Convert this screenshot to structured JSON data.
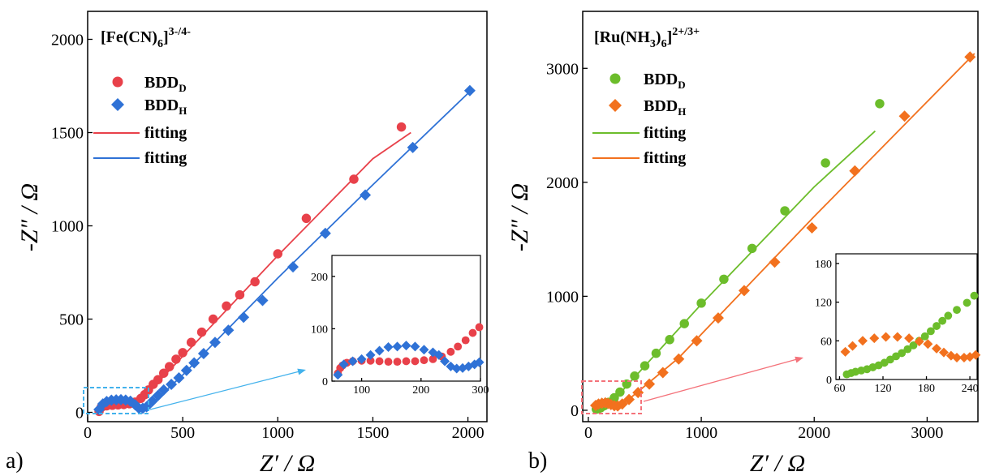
{
  "chart_data": [
    {
      "panel_label": "a)",
      "type": "scatter",
      "title": "[Fe(CN)6]3-/4-",
      "xlabel": "Z′ / Ω",
      "ylabel": "-Z″ / Ω",
      "xlim": [
        0,
        2100
      ],
      "ylim": [
        -50,
        2150
      ],
      "xticks": [
        0,
        500,
        1000,
        1500,
        2000
      ],
      "yticks": [
        0,
        500,
        1000,
        1500,
        2000
      ],
      "grid": false,
      "legend_position": "top-left",
      "legend": [
        "BDDD",
        "BDDH",
        "fitting",
        "fitting"
      ],
      "series": [
        {
          "name": "BDDD",
          "marker": "circle",
          "color": "#e8414a",
          "points": [
            [
              60,
              5
            ],
            [
              70,
              25
            ],
            [
              80,
              32
            ],
            [
              100,
              35
            ],
            [
              130,
              38
            ],
            [
              160,
              40
            ],
            [
              190,
              42
            ],
            [
              220,
              46
            ],
            [
              250,
              55
            ],
            [
              280,
              75
            ],
            [
              300,
              95
            ],
            [
              320,
              120
            ],
            [
              345,
              150
            ],
            [
              370,
              175
            ],
            [
              400,
              210
            ],
            [
              430,
              245
            ],
            [
              465,
              285
            ],
            [
              500,
              320
            ],
            [
              545,
              375
            ],
            [
              600,
              430
            ],
            [
              660,
              500
            ],
            [
              730,
              570
            ],
            [
              800,
              630
            ],
            [
              880,
              700
            ],
            [
              1000,
              850
            ],
            [
              1150,
              1040
            ],
            [
              1400,
              1250
            ],
            [
              1650,
              1530
            ]
          ]
        },
        {
          "name": "BDDH",
          "marker": "diamond",
          "color": "#2f72d6",
          "points": [
            [
              60,
              15
            ],
            [
              80,
              45
            ],
            [
              100,
              58
            ],
            [
              125,
              65
            ],
            [
              150,
              67
            ],
            [
              175,
              68
            ],
            [
              200,
              66
            ],
            [
              225,
              60
            ],
            [
              250,
              40
            ],
            [
              270,
              22
            ],
            [
              290,
              22
            ],
            [
              310,
              30
            ],
            [
              340,
              60
            ],
            [
              370,
              90
            ],
            [
              400,
              120
            ],
            [
              440,
              150
            ],
            [
              480,
              185
            ],
            [
              520,
              225
            ],
            [
              560,
              265
            ],
            [
              610,
              315
            ],
            [
              670,
              375
            ],
            [
              740,
              440
            ],
            [
              820,
              510
            ],
            [
              920,
              600
            ],
            [
              1080,
              780
            ],
            [
              1250,
              960
            ],
            [
              1460,
              1165
            ],
            [
              1710,
              1420
            ],
            [
              2010,
              1725
            ]
          ]
        },
        {
          "name": "fitting",
          "type": "line",
          "color": "#e8414a",
          "points": [
            [
              60,
              5
            ],
            [
              90,
              30
            ],
            [
              150,
              38
            ],
            [
              220,
              44
            ],
            [
              280,
              70
            ],
            [
              350,
              140
            ],
            [
              500,
              300
            ],
            [
              1000,
              840
            ],
            [
              1500,
              1360
            ],
            [
              1700,
              1500
            ]
          ]
        },
        {
          "name": "fitting",
          "type": "line",
          "color": "#2f72d6",
          "points": [
            [
              60,
              10
            ],
            [
              100,
              55
            ],
            [
              175,
              65
            ],
            [
              240,
              50
            ],
            [
              280,
              25
            ],
            [
              330,
              40
            ],
            [
              500,
              200
            ],
            [
              1000,
              720
            ],
            [
              1500,
              1220
            ],
            [
              2020,
              1730
            ]
          ]
        }
      ],
      "annotations": [
        "dashed box around the low-frequency region with an arrow to the inset"
      ],
      "inset": {
        "xlim": [
          50,
          300
        ],
        "ylim": [
          0,
          240
        ],
        "xticks": [
          100,
          200,
          300
        ],
        "yticks": [
          0,
          100,
          200
        ],
        "series": [
          {
            "name": "BDDD",
            "marker": "circle",
            "color": "#e8414a",
            "points": [
              [
                60,
                15
              ],
              [
                64,
                25
              ],
              [
                68,
                30
              ],
              [
                75,
                35
              ],
              [
                85,
                38
              ],
              [
                100,
                39
              ],
              [
                115,
                39
              ],
              [
                130,
                38
              ],
              [
                145,
                37
              ],
              [
                160,
                37
              ],
              [
                175,
                38
              ],
              [
                190,
                38
              ],
              [
                205,
                40
              ],
              [
                220,
                42
              ],
              [
                235,
                47
              ],
              [
                250,
                56
              ],
              [
                262,
                66
              ],
              [
                275,
                78
              ],
              [
                287,
                92
              ],
              [
                298,
                103
              ]
            ]
          },
          {
            "name": "BDDH",
            "marker": "diamond",
            "color": "#2f72d6",
            "points": [
              [
                60,
                12
              ],
              [
                70,
                32
              ],
              [
                85,
                38
              ],
              [
                100,
                42
              ],
              [
                115,
                50
              ],
              [
                130,
                58
              ],
              [
                145,
                65
              ],
              [
                160,
                66
              ],
              [
                175,
                68
              ],
              [
                190,
                66
              ],
              [
                205,
                60
              ],
              [
                220,
                55
              ],
              [
                230,
                50
              ],
              [
                240,
                38
              ],
              [
                250,
                28
              ],
              [
                260,
                24
              ],
              [
                270,
                25
              ],
              [
                280,
                28
              ],
              [
                290,
                32
              ],
              [
                298,
                36
              ]
            ]
          }
        ]
      }
    },
    {
      "panel_label": "b)",
      "type": "scatter",
      "title": "[Ru(NH3)6]2+/3+",
      "xlabel": "Z′ / Ω",
      "ylabel": "-Z″ / Ω",
      "xlim": [
        -50,
        3450
      ],
      "ylim": [
        -100,
        3500
      ],
      "xticks": [
        0,
        1000,
        2000,
        3000
      ],
      "yticks": [
        0,
        1000,
        2000,
        3000
      ],
      "grid": false,
      "legend_position": "top-left",
      "legend": [
        "BDDD",
        "BDDH",
        "fitting",
        "fitting"
      ],
      "series": [
        {
          "name": "BDDD",
          "marker": "circle",
          "color": "#6cbd2b",
          "points": [
            [
              70,
              10
            ],
            [
              90,
              14
            ],
            [
              110,
              22
            ],
            [
              140,
              40
            ],
            [
              180,
              70
            ],
            [
              230,
              110
            ],
            [
              280,
              160
            ],
            [
              340,
              230
            ],
            [
              410,
              300
            ],
            [
              500,
              390
            ],
            [
              600,
              500
            ],
            [
              720,
              620
            ],
            [
              850,
              760
            ],
            [
              1000,
              940
            ],
            [
              1200,
              1150
            ],
            [
              1450,
              1420
            ],
            [
              1740,
              1750
            ],
            [
              2100,
              2170
            ],
            [
              2580,
              2690
            ]
          ]
        },
        {
          "name": "BDDH",
          "marker": "diamond",
          "color": "#f2711e",
          "points": [
            [
              65,
              42
            ],
            [
              90,
              55
            ],
            [
              120,
              62
            ],
            [
              150,
              65
            ],
            [
              175,
              60
            ],
            [
              200,
              50
            ],
            [
              230,
              40
            ],
            [
              260,
              38
            ],
            [
              300,
              55
            ],
            [
              360,
              95
            ],
            [
              440,
              155
            ],
            [
              540,
              230
            ],
            [
              660,
              330
            ],
            [
              800,
              450
            ],
            [
              960,
              610
            ],
            [
              1150,
              810
            ],
            [
              1380,
              1050
            ],
            [
              1650,
              1300
            ],
            [
              1980,
              1600
            ],
            [
              2360,
              2100
            ],
            [
              2800,
              2580
            ],
            [
              3380,
              3100
            ]
          ]
        },
        {
          "name": "fitting",
          "type": "line",
          "color": "#6cbd2b",
          "points": [
            [
              70,
              8
            ],
            [
              200,
              60
            ],
            [
              400,
              280
            ],
            [
              1000,
              930
            ],
            [
              2000,
              1960
            ],
            [
              2540,
              2450
            ]
          ]
        },
        {
          "name": "fitting",
          "type": "line",
          "color": "#f2711e",
          "points": [
            [
              65,
              40
            ],
            [
              150,
              62
            ],
            [
              230,
              40
            ],
            [
              350,
              90
            ],
            [
              800,
              460
            ],
            [
              2000,
              1700
            ],
            [
              3420,
              3130
            ]
          ]
        }
      ],
      "annotations": [
        "dashed box around the low-frequency region with an arrow to the inset"
      ],
      "inset": {
        "xlim": [
          55,
          250
        ],
        "ylim": [
          0,
          195
        ],
        "xticks": [
          60,
          120,
          180,
          240
        ],
        "yticks": [
          0,
          60,
          120,
          180
        ],
        "series": [
          {
            "name": "BDDD",
            "marker": "circle",
            "color": "#6cbd2b",
            "points": [
              [
                70,
                8
              ],
              [
                76,
                10
              ],
              [
                82,
                12
              ],
              [
                90,
                14
              ],
              [
                98,
                16
              ],
              [
                106,
                19
              ],
              [
                114,
                22
              ],
              [
                122,
                26
              ],
              [
                130,
                31
              ],
              [
                138,
                36
              ],
              [
                146,
                41
              ],
              [
                154,
                47
              ],
              [
                162,
                53
              ],
              [
                170,
                60
              ],
              [
                178,
                67
              ],
              [
                186,
                75
              ],
              [
                194,
                83
              ],
              [
                202,
                91
              ],
              [
                210,
                99
              ],
              [
                222,
                108
              ],
              [
                236,
                119
              ],
              [
                246,
                130
              ]
            ]
          },
          {
            "name": "BDDH",
            "marker": "diamond",
            "color": "#f2711e",
            "points": [
              [
                68,
                43
              ],
              [
                78,
                52
              ],
              [
                92,
                60
              ],
              [
                108,
                64
              ],
              [
                124,
                66
              ],
              [
                140,
                66
              ],
              [
                156,
                64
              ],
              [
                170,
                59
              ],
              [
                182,
                55
              ],
              [
                194,
                48
              ],
              [
                204,
                42
              ],
              [
                214,
                37
              ],
              [
                222,
                34
              ],
              [
                232,
                34
              ],
              [
                240,
                35
              ],
              [
                248,
                38
              ]
            ]
          }
        ]
      }
    }
  ],
  "panels": [
    {
      "tag": "a)",
      "title_main": "[Fe(CN)",
      "title_sub": "6",
      "title_close": "]",
      "title_sup": "3-/4-",
      "xlabel": "Z′ / Ω",
      "ylabel": "-Z″ / Ω",
      "legend": [
        {
          "base": "BDD",
          "sub": "D"
        },
        {
          "base": "BDD",
          "sub": "H"
        },
        {
          "base": "fitting",
          "sub": ""
        },
        {
          "base": "fitting",
          "sub": ""
        }
      ]
    },
    {
      "tag": "b)",
      "title_main": "[Ru(NH",
      "title_sub": "3",
      "title_close": ")",
      "title_sub2": "6",
      "title_close2": "]",
      "title_sup": "2+/3+",
      "xlabel": "Z′ / Ω",
      "ylabel": "-Z″ / Ω",
      "legend": [
        {
          "base": "BDD",
          "sub": "D"
        },
        {
          "base": "BDD",
          "sub": "H"
        },
        {
          "base": "fitting",
          "sub": ""
        },
        {
          "base": "fitting",
          "sub": ""
        }
      ]
    }
  ]
}
